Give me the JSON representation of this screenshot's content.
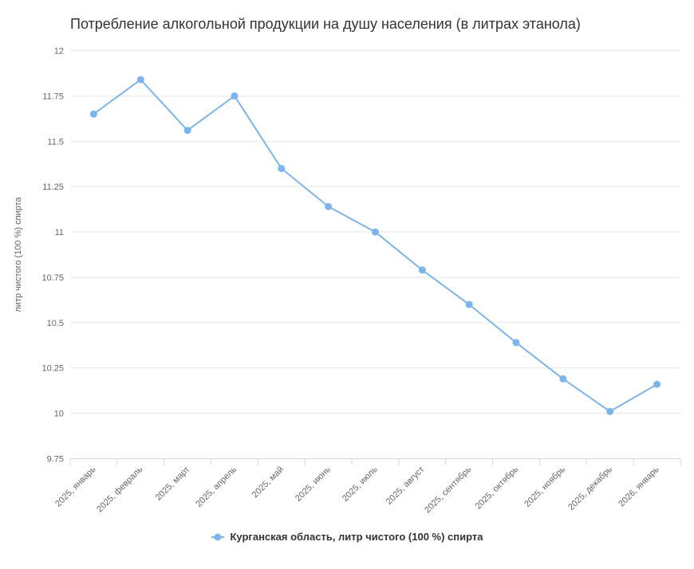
{
  "chart_data": {
    "type": "line",
    "title": "Потребление алкогольной продукции на душу населения (в литрах этанола)",
    "xlabel": "",
    "ylabel": "литр чистого (100 %) спирта",
    "categories": [
      "2025, январь",
      "2025, февраль",
      "2025, март",
      "2025, апрель",
      "2025, май",
      "2025, июнь",
      "2025, июль",
      "2025, август",
      "2025, сентябрь",
      "2025, октябрь",
      "2025, ноябрь",
      "2025, декабрь",
      "2026, январь"
    ],
    "series": [
      {
        "name": "Курганская область, литр чистого (100 %) спирта",
        "values": [
          11.65,
          11.84,
          11.56,
          11.75,
          11.35,
          11.14,
          11.0,
          10.79,
          10.6,
          10.39,
          10.19,
          10.01,
          10.16
        ],
        "color": "#7cb5ec"
      }
    ],
    "ylim": [
      9.75,
      12
    ],
    "yticks": [
      9.75,
      10,
      10.25,
      10.5,
      10.75,
      11,
      11.25,
      11.5,
      11.75,
      12
    ],
    "ytick_labels": [
      "9.75",
      "10",
      "10.25",
      "10.5",
      "10.75",
      "11",
      "11.25",
      "11.5",
      "11.75",
      "12"
    ],
    "grid": true,
    "legend_position": "bottom",
    "x_label_rotation": -45
  },
  "colors": {
    "series": "#7cb5ec",
    "grid": "#e6e6e6",
    "axis_line": "#ccd6eb",
    "tick_label": "#666666",
    "title": "#333333",
    "legend_text": "#333333"
  }
}
